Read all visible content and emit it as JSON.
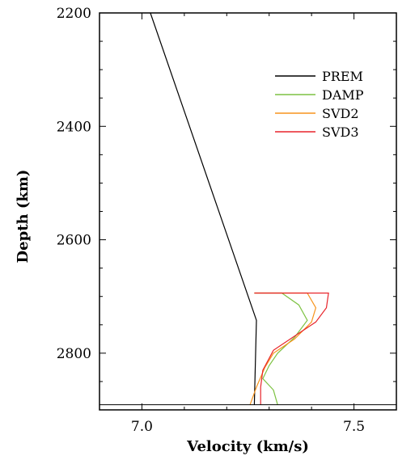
{
  "chart_data": {
    "type": "line",
    "title": "",
    "xlabel": "Velocity (km/s)",
    "ylabel": "Depth (km)",
    "xlim": [
      6.9,
      7.6
    ],
    "ylim": [
      2200,
      2900
    ],
    "y_inverted": true,
    "xticks": [
      7.0,
      7.5
    ],
    "xtick_labels": [
      "7.0",
      "7.5"
    ],
    "yticks": [
      2200,
      2400,
      2600,
      2800
    ],
    "ytick_labels": [
      "2200",
      "2400",
      "2600",
      "2800"
    ],
    "grid": false,
    "legend_position": "top-right",
    "series": [
      {
        "name": "PREM",
        "color": "#000000",
        "points": [
          [
            7.02,
            2200
          ],
          [
            7.27,
            2742
          ],
          [
            7.265,
            2891
          ]
        ]
      },
      {
        "name": "DAMP",
        "color": "#7dc242",
        "points": [
          [
            7.265,
            2694
          ],
          [
            7.33,
            2694
          ],
          [
            7.37,
            2715
          ],
          [
            7.39,
            2742
          ],
          [
            7.36,
            2772
          ],
          [
            7.32,
            2800
          ],
          [
            7.3,
            2822
          ],
          [
            7.285,
            2845
          ],
          [
            7.31,
            2865
          ],
          [
            7.32,
            2891
          ]
        ]
      },
      {
        "name": "SVD2",
        "color": "#f7941d",
        "points": [
          [
            7.265,
            2694
          ],
          [
            7.39,
            2694
          ],
          [
            7.41,
            2720
          ],
          [
            7.4,
            2745
          ],
          [
            7.36,
            2775
          ],
          [
            7.31,
            2800
          ],
          [
            7.29,
            2825
          ],
          [
            7.27,
            2860
          ],
          [
            7.255,
            2891
          ]
        ]
      },
      {
        "name": "SVD3",
        "color": "#e8242b",
        "points": [
          [
            7.265,
            2694
          ],
          [
            7.44,
            2694
          ],
          [
            7.435,
            2720
          ],
          [
            7.41,
            2745
          ],
          [
            7.37,
            2765
          ],
          [
            7.31,
            2795
          ],
          [
            7.285,
            2830
          ],
          [
            7.28,
            2860
          ],
          [
            7.28,
            2891
          ]
        ]
      }
    ],
    "boundary_line": {
      "y": 2891,
      "color": "#000000"
    }
  }
}
